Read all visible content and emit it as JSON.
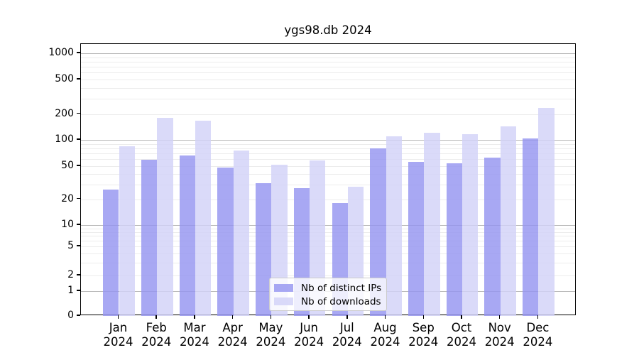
{
  "chart_data": {
    "type": "bar",
    "title": "ygs98.db 2024",
    "yscale": "symlog",
    "ylim": [
      0,
      1300
    ],
    "y_ticks": [
      0,
      1,
      2,
      5,
      10,
      20,
      50,
      100,
      200,
      500,
      1000
    ],
    "months": [
      "Jan",
      "Feb",
      "Mar",
      "Apr",
      "May",
      "Jun",
      "Jul",
      "Aug",
      "Sep",
      "Oct",
      "Nov",
      "Dec"
    ],
    "year": "2024",
    "series": [
      {
        "name": "Nb of distinct IPs",
        "color": "#9595f0",
        "alpha": 0.82,
        "values": [
          26,
          59,
          66,
          48,
          31,
          27,
          18,
          80,
          56,
          54,
          63,
          103
        ]
      },
      {
        "name": "Nb of downloads",
        "color": "#d2d2f8",
        "alpha": 0.82,
        "values": [
          84,
          181,
          168,
          75,
          52,
          58,
          28,
          110,
          121,
          117,
          144,
          236
        ]
      }
    ],
    "legend": {
      "position": "lower center"
    },
    "grid": {
      "major_color": "#b7b7b7",
      "minor_color": "#ececec"
    },
    "background": "#ffffff",
    "xlabel": "",
    "ylabel": ""
  }
}
